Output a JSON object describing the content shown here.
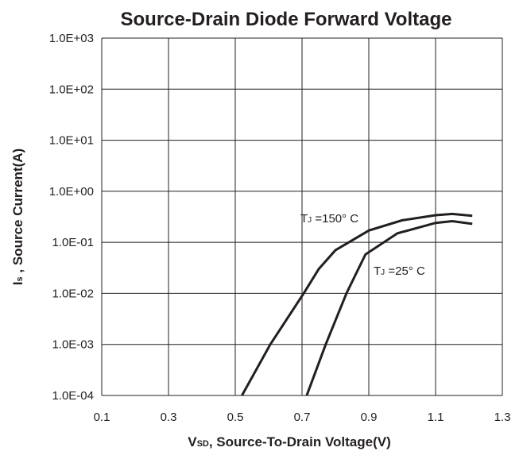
{
  "chart_data": {
    "type": "line",
    "title": "Source-Drain Diode Forward Voltage",
    "xlabel": [
      "V",
      "SD",
      ", Source-To-Drain Voltage(V)"
    ],
    "ylabel": [
      "I",
      "s",
      " , Source Current(A)"
    ],
    "xlim": [
      0.1,
      1.3
    ],
    "xticks": [
      0.1,
      0.3,
      0.5,
      0.7,
      0.9,
      1.1,
      1.3
    ],
    "ylim": [
      0.0001,
      1000
    ],
    "log_y": true,
    "grid": true,
    "yticks": [
      {
        "value": 0.0001,
        "label": "1.0E-04"
      },
      {
        "value": 0.001,
        "label": "1.0E-03"
      },
      {
        "value": 0.01,
        "label": "1.0E-02"
      },
      {
        "value": 0.1,
        "label": "1.0E-01"
      },
      {
        "value": 1,
        "label": "1.0E+00"
      },
      {
        "value": 10,
        "label": "1.0E+01"
      },
      {
        "value": 100,
        "label": "1.0E+02"
      },
      {
        "value": 1000,
        "label": "1.0E+03"
      }
    ],
    "series": [
      {
        "color": "#231f20",
        "x": [
          0.52,
          0.605,
          0.705,
          0.75,
          0.8,
          0.9,
          1.0,
          1.1,
          1.15,
          1.21
        ],
        "values": [
          0.0001,
          0.001,
          0.01,
          0.03,
          0.07,
          0.17,
          0.27,
          0.34,
          0.36,
          0.33
        ]
      },
      {
        "color": "#231f20",
        "x": [
          0.714,
          0.771,
          0.833,
          0.89,
          0.986,
          1.1,
          1.15,
          1.21
        ],
        "values": [
          0.0001,
          0.001,
          0.01,
          0.058,
          0.15,
          0.24,
          0.26,
          0.23
        ]
      }
    ],
    "annotations": [
      {
        "text": [
          "T",
          "J",
          " =150° C"
        ]
      },
      {
        "text": [
          "T",
          "J",
          " =25° C"
        ]
      }
    ]
  }
}
